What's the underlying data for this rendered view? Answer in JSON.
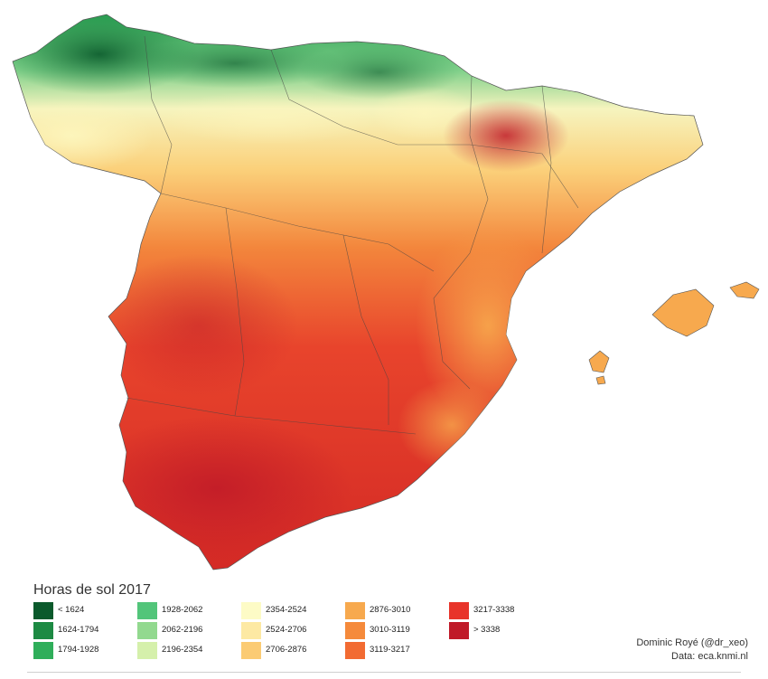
{
  "legend": {
    "title": "Horas de sol 2017",
    "classes": [
      {
        "label": "< 1624",
        "color": "#0b5a2c"
      },
      {
        "label": "1624-1794",
        "color": "#1d8a43"
      },
      {
        "label": "1794-1928",
        "color": "#2fae5a"
      },
      {
        "label": "1928-2062",
        "color": "#52c57a"
      },
      {
        "label": "2062-2196",
        "color": "#92d98f"
      },
      {
        "label": "2196-2354",
        "color": "#d5f0ab"
      },
      {
        "label": "2354-2524",
        "color": "#fdfbc6"
      },
      {
        "label": "2524-2706",
        "color": "#fde9a3"
      },
      {
        "label": "2706-2876",
        "color": "#fbcb74"
      },
      {
        "label": "2876-3010",
        "color": "#f7a94e"
      },
      {
        "label": "3010-3119",
        "color": "#f58a3b"
      },
      {
        "label": "3119-3217",
        "color": "#f26b32"
      },
      {
        "label": "3217-3338",
        "color": "#e8342a"
      },
      {
        "label": "> 3338",
        "color": "#c01a28"
      }
    ]
  },
  "credit": {
    "author": "Dominic Royé (@dr_xeo)",
    "source": "Data: eca.knmi.nl"
  }
}
